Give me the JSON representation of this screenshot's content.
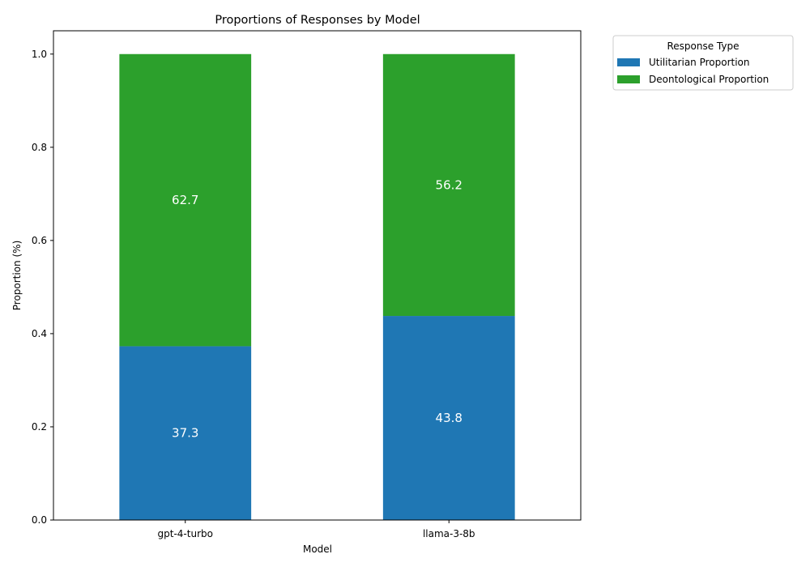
{
  "chart_data": {
    "type": "bar",
    "stacked": true,
    "title": "Proportions of Responses by Model",
    "xlabel": "Model",
    "ylabel": "Proportion (%)",
    "ylim": [
      0,
      1.05
    ],
    "yticks": [
      "0.0",
      "0.2",
      "0.4",
      "0.6",
      "0.8",
      "1.0"
    ],
    "categories": [
      "gpt-4-turbo",
      "llama-3-8b"
    ],
    "series": [
      {
        "name": "Utilitarian Proportion",
        "color": "#1f77b4",
        "values": [
          0.373,
          0.438
        ],
        "labels": [
          "37.3",
          "43.8"
        ]
      },
      {
        "name": "Deontological Proportion",
        "color": "#2ca02c",
        "values": [
          0.627,
          0.562
        ],
        "labels": [
          "62.7",
          "56.2"
        ]
      }
    ],
    "legend": {
      "title": "Response Type",
      "position": "outside-top-right"
    },
    "grid": false
  }
}
